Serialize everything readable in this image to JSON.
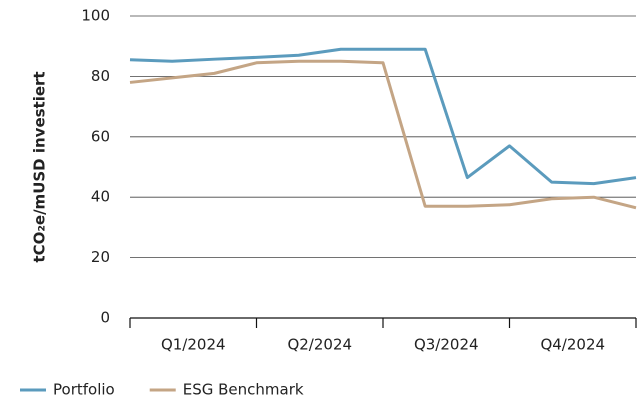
{
  "chart_data": {
    "type": "line",
    "y_label": "tCO₂e/mUSD investiert",
    "categories": [
      null,
      "Q1/2024",
      null,
      null,
      "Q2/2024",
      null,
      null,
      "Q3/2024",
      null,
      null,
      "Q4/2024",
      null,
      null
    ],
    "series": [
      {
        "name": "Portfolio",
        "color": "#5b9bbd",
        "values": [
          85.5,
          85,
          85.7,
          86.3,
          87,
          89,
          89,
          89,
          46.5,
          57,
          45,
          44.5,
          46.5
        ]
      },
      {
        "name": "ESG Benchmark",
        "color": "#c4a585",
        "values": [
          78,
          79.5,
          81,
          84.5,
          85,
          85,
          84.5,
          37,
          37,
          37.5,
          39.5,
          40,
          36.5
        ]
      }
    ],
    "ylim": [
      0,
      100
    ],
    "yticks": [
      0,
      20,
      40,
      60,
      80,
      100
    ],
    "grid": true
  }
}
